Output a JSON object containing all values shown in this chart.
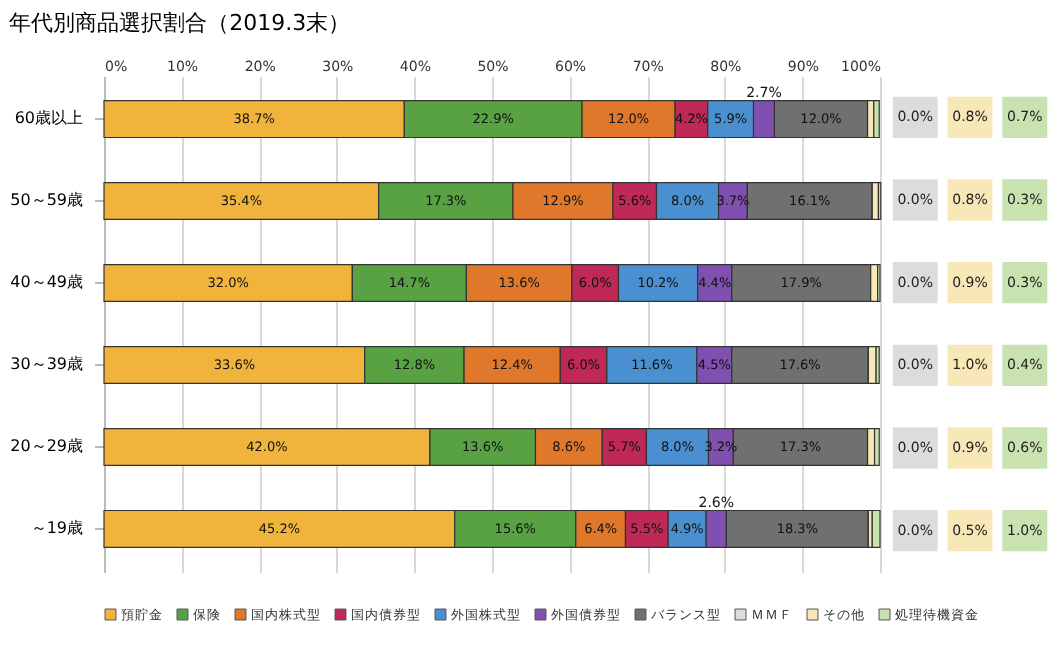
{
  "chart_data": {
    "type": "bar",
    "orientation": "horizontal",
    "stacked": true,
    "title": "年代別商品選択割合（2019.3末）",
    "categories": [
      "60歳以上",
      "50～59歳",
      "40～49歳",
      "30～39歳",
      "20～29歳",
      "～19歳"
    ],
    "series": [
      {
        "name": "預貯金",
        "color": "#f0b43c",
        "values": [
          38.7,
          35.4,
          32.0,
          33.6,
          42.0,
          45.2
        ],
        "value_labels": [
          "38.7%",
          "35.4%",
          "32.0%",
          "33.6%",
          "42.0%",
          "45.2%"
        ]
      },
      {
        "name": "保険",
        "color": "#58a244",
        "values": [
          22.9,
          17.3,
          14.7,
          12.8,
          13.6,
          15.6
        ],
        "value_labels": [
          "22.9%",
          "17.3%",
          "14.7%",
          "12.8%",
          "13.6%",
          "15.6%"
        ]
      },
      {
        "name": "国内株式型",
        "color": "#e0782c",
        "values": [
          12.0,
          12.9,
          13.6,
          12.4,
          8.6,
          6.4
        ],
        "value_labels": [
          "12.0%",
          "12.9%",
          "13.6%",
          "12.4%",
          "8.6%",
          "6.4%"
        ]
      },
      {
        "name": "国内債券型",
        "color": "#c02858",
        "values": [
          4.2,
          5.6,
          6.0,
          6.0,
          5.7,
          5.5
        ],
        "value_labels": [
          "4.2%",
          "5.6%",
          "6.0%",
          "6.0%",
          "5.7%",
          "5.5%"
        ]
      },
      {
        "name": "外国株式型",
        "color": "#4a90d0",
        "values": [
          5.9,
          8.0,
          10.2,
          11.6,
          8.0,
          4.9
        ],
        "value_labels": [
          "5.9%",
          "8.0%",
          "10.2%",
          "11.6%",
          "8.0%",
          "4.9%"
        ]
      },
      {
        "name": "外国債券型",
        "color": "#8050b0",
        "values": [
          2.7,
          3.7,
          4.4,
          4.5,
          3.2,
          2.6
        ],
        "value_labels": [
          "2.7%",
          "3.7%",
          "4.4%",
          "4.5%",
          "3.2%",
          "2.6%"
        ]
      },
      {
        "name": "バランス型",
        "color": "#707070",
        "values": [
          12.0,
          16.1,
          17.9,
          17.6,
          17.3,
          18.3
        ],
        "value_labels": [
          "12.0%",
          "16.1%",
          "17.9%",
          "17.6%",
          "17.3%",
          "18.3%"
        ]
      },
      {
        "name": "ＭＭＦ",
        "color": "#dcdcdc",
        "values": [
          0.0,
          0.0,
          0.0,
          0.0,
          0.0,
          0.0
        ],
        "value_labels": [
          "0.0%",
          "0.0%",
          "0.0%",
          "0.0%",
          "0.0%",
          "0.0%"
        ]
      },
      {
        "name": "その他",
        "color": "#f8e8b8",
        "values": [
          0.8,
          0.8,
          0.9,
          1.0,
          0.9,
          0.5
        ],
        "value_labels": [
          "0.8%",
          "0.8%",
          "0.9%",
          "1.0%",
          "0.9%",
          "0.5%"
        ]
      },
      {
        "name": "処理待機資金",
        "color": "#c8e2b0",
        "values": [
          0.7,
          0.3,
          0.3,
          0.4,
          0.6,
          1.0
        ],
        "value_labels": [
          "0.7%",
          "0.3%",
          "0.3%",
          "0.4%",
          "0.6%",
          "1.0%"
        ]
      }
    ],
    "xlim": [
      0,
      100
    ],
    "xticks": [
      {
        "value": 0,
        "label": "0%"
      },
      {
        "value": 10,
        "label": "10%"
      },
      {
        "value": 20,
        "label": "20%"
      },
      {
        "value": 30,
        "label": "30%"
      },
      {
        "value": 40,
        "label": "40%"
      },
      {
        "value": 50,
        "label": "50%"
      },
      {
        "value": 60,
        "label": "60%"
      },
      {
        "value": 70,
        "label": "70%"
      },
      {
        "value": 80,
        "label": "80%"
      },
      {
        "value": 90,
        "label": "90%"
      },
      {
        "value": 100,
        "label": "100%"
      }
    ],
    "grid": "x",
    "legend": "bottom"
  }
}
